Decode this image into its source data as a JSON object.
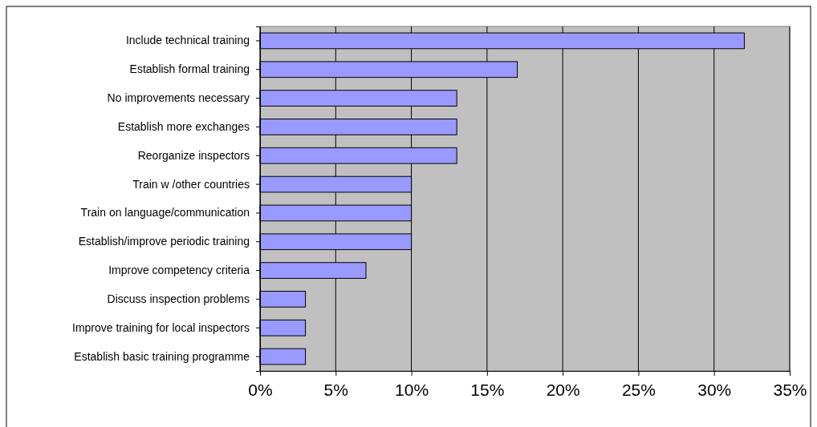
{
  "chart_data": {
    "type": "bar",
    "orientation": "horizontal",
    "categories": [
      "Include technical training",
      "Establish formal training",
      "No improvements necessary",
      "Establish more exchanges",
      "Reorganize inspectors",
      "Train w /other countries",
      "Train on language/communication",
      "Establish/improve periodic training",
      "Improve competency criteria",
      "Discuss inspection problems",
      "Improve training for local inspectors",
      "Establish basic training programme"
    ],
    "values": [
      32,
      17,
      13,
      13,
      13,
      10,
      10,
      10,
      7,
      3,
      3,
      3
    ],
    "color": "#9999ff",
    "xlim": [
      0,
      35
    ],
    "xticks": [
      {
        "value": 0,
        "label": "0%"
      },
      {
        "value": 5,
        "label": "5%"
      },
      {
        "value": 10,
        "label": "10%"
      },
      {
        "value": 15,
        "label": "15%"
      },
      {
        "value": 20,
        "label": "20%"
      },
      {
        "value": 25,
        "label": "25%"
      },
      {
        "value": 30,
        "label": "30%"
      },
      {
        "value": 35,
        "label": "35%"
      }
    ],
    "grid": "x"
  }
}
